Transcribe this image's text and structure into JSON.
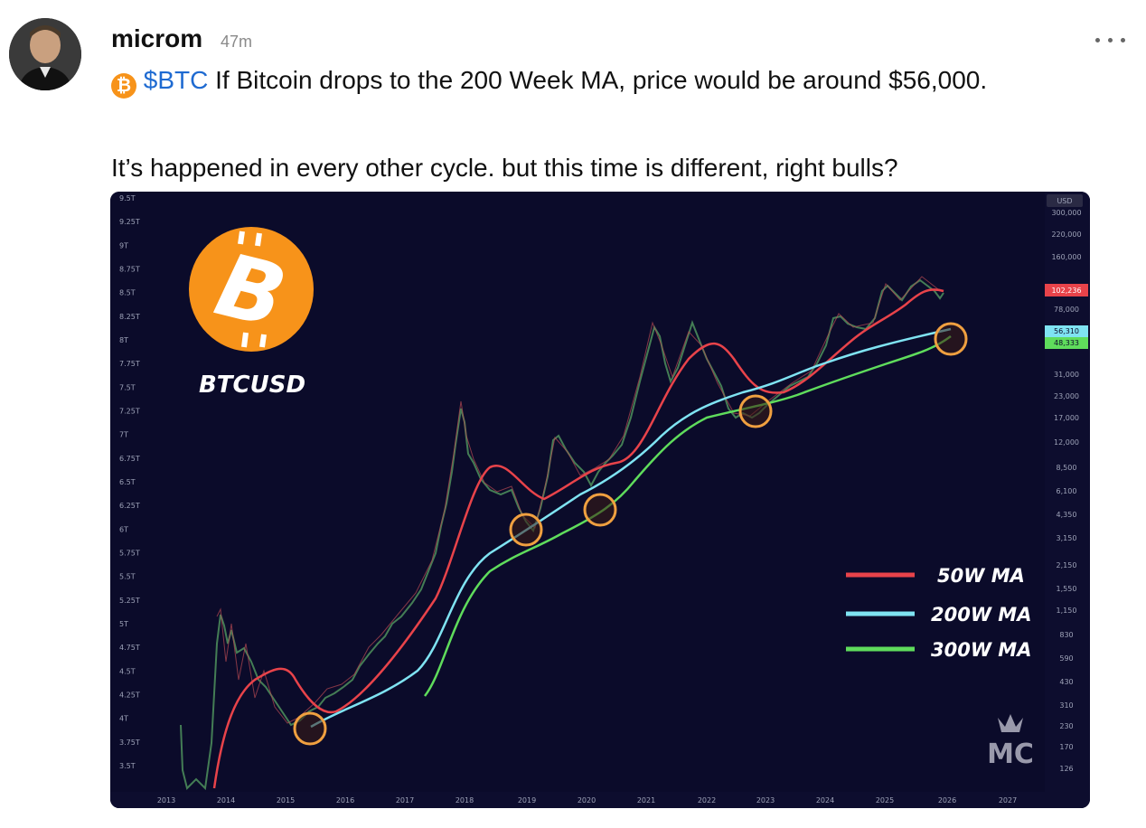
{
  "post": {
    "username": "microm",
    "time": "47m",
    "coin_badge": "₿",
    "cashtag": "$BTC",
    "text_line1": " If Bitcoin drops to the 200 Week MA, price would be around $56,000.",
    "text_line2": "It’s happened in every other cycle. but this time is different, right bulls?"
  },
  "image": {
    "title": "BTCUSD",
    "logo_symbol": "B",
    "currency": "USD",
    "left_axis": [
      "9.5T",
      "9.25T",
      "9T",
      "8.75T",
      "8.5T",
      "8.25T",
      "8T",
      "7.75T",
      "7.5T",
      "7.25T",
      "7T",
      "6.75T",
      "6.5T",
      "6.25T",
      "6T",
      "5.75T",
      "5.5T",
      "5.25T",
      "5T",
      "4.75T",
      "4.5T",
      "4.25T",
      "4T",
      "3.75T",
      "3.5T"
    ],
    "right_axis": [
      "300,000",
      "220,000",
      "160,000",
      "78,000",
      "31,000",
      "23,000",
      "17,000",
      "12,000",
      "8,500",
      "6,100",
      "4,350",
      "3,150",
      "2,150",
      "1,550",
      "1,150",
      "830",
      "590",
      "430",
      "310",
      "230",
      "170",
      "126"
    ],
    "price_tags": [
      {
        "value": "102,236",
        "color": "#e8434a"
      },
      {
        "value": "56,310",
        "color": "#7fe3f2"
      },
      {
        "value": "48,333",
        "color": "#5fdc5c"
      }
    ],
    "x_axis": [
      "2013",
      "2014",
      "2015",
      "2016",
      "2017",
      "2018",
      "2019",
      "2020",
      "2021",
      "2022",
      "2023",
      "2024",
      "2025",
      "2026",
      "2027"
    ],
    "legend": [
      {
        "label": "50W MA",
        "color": "#e8434a"
      },
      {
        "label": "200W MA",
        "color": "#7fe3f2"
      },
      {
        "label": "300W MA",
        "color": "#5fdc5c"
      }
    ],
    "watermark": "MC"
  }
}
